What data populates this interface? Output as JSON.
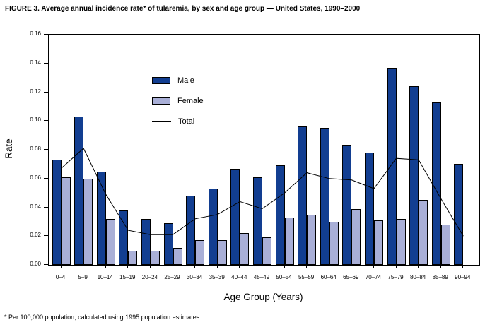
{
  "figure": {
    "title": "FIGURE 3. Average annual incidence rate* of tularemia, by sex and age group — United States, 1990–2000",
    "footnote": "* Per 100,000 population, calculated using 1995 population estimates."
  },
  "chart_data": {
    "type": "bar",
    "title": "FIGURE 3. Average annual incidence rate* of tularemia, by sex and age group — United States, 1990–2000",
    "xlabel": "Age Group (Years)",
    "ylabel": "Rate",
    "ylim": [
      0,
      0.16
    ],
    "ytick_labels": [
      "0.00",
      "0.02",
      "0.04",
      "0.06",
      "0.08",
      "0.10",
      "0.12",
      "0.14",
      "0.16"
    ],
    "grid": false,
    "legend_position": "inside-upper-left",
    "categories": [
      "0–4",
      "5–9",
      "10–14",
      "15–19",
      "20–24",
      "25–29",
      "30–34",
      "35–39",
      "40–44",
      "45–49",
      "50–54",
      "55–59",
      "60–64",
      "65–69",
      "70–74",
      "75–79",
      "80–84",
      "85–89",
      "90–94"
    ],
    "series": [
      {
        "name": "Male",
        "type": "bar",
        "color": "#123e91",
        "values": [
          0.073,
          0.103,
          0.065,
          0.038,
          0.032,
          0.029,
          0.048,
          0.053,
          0.067,
          0.061,
          0.069,
          0.096,
          0.095,
          0.083,
          0.078,
          0.137,
          0.124,
          0.113,
          0.07
        ]
      },
      {
        "name": "Female",
        "type": "bar",
        "color": "#a9afd7",
        "values": [
          0.061,
          0.06,
          0.032,
          0.01,
          0.01,
          0.012,
          0.017,
          0.017,
          0.022,
          0.019,
          0.033,
          0.035,
          0.03,
          0.039,
          0.031,
          0.032,
          0.045,
          0.028,
          0
        ]
      },
      {
        "name": "Total",
        "type": "line",
        "color": "#000000",
        "values": [
          0.067,
          0.081,
          0.049,
          0.024,
          0.021,
          0.021,
          0.032,
          0.035,
          0.044,
          0.039,
          0.05,
          0.064,
          0.06,
          0.059,
          0.053,
          0.074,
          0.073,
          0.046,
          0.02
        ]
      }
    ],
    "bar_outline_color": "#000000"
  }
}
